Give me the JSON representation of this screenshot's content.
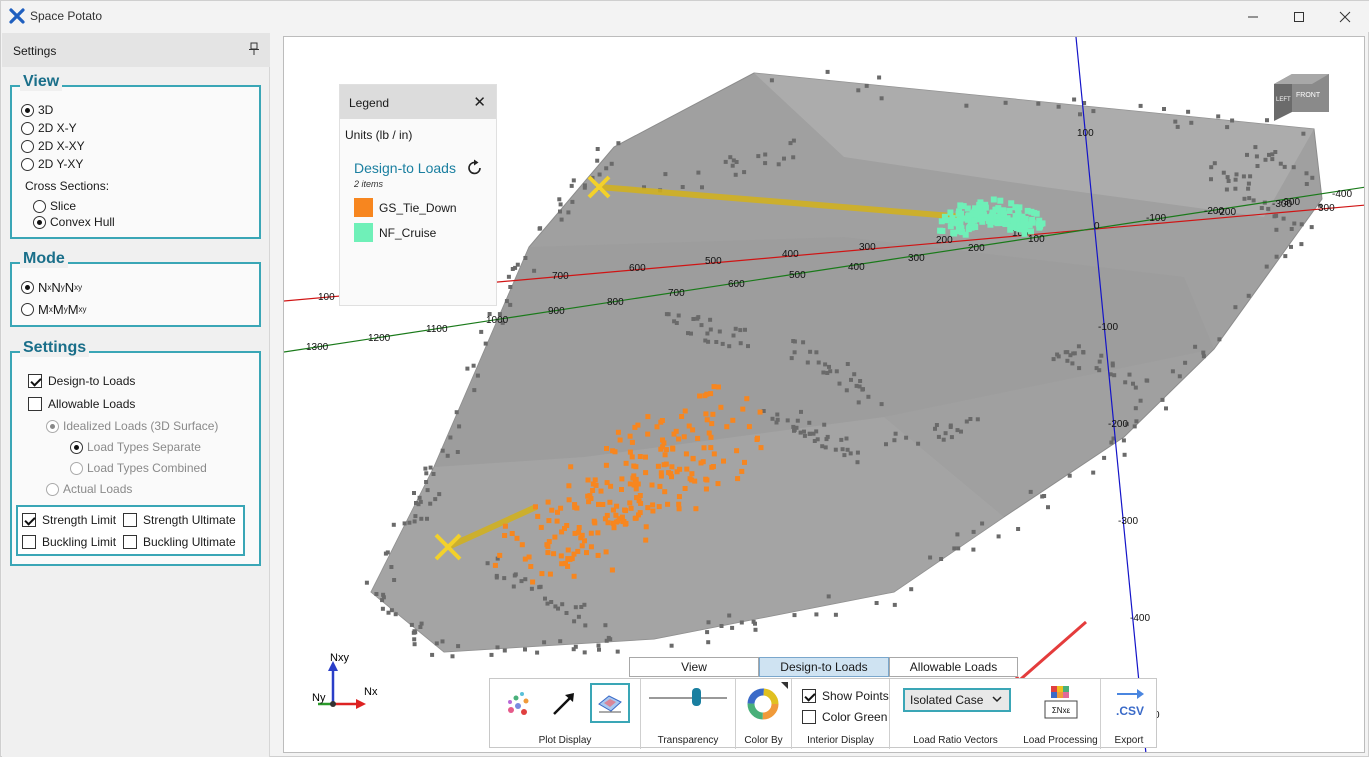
{
  "app": {
    "title": "Space Potato",
    "colors": {
      "accent": "#3aa6b6",
      "heading": "#1a6f8a",
      "orange": "#f7861f",
      "green": "#6ff0b8",
      "gold": "#e3c020"
    }
  },
  "sidebar": {
    "title": "Settings",
    "view": {
      "heading": "View",
      "options": [
        "3D",
        "2D X-Y",
        "2D X-XY",
        "2D Y-XY"
      ],
      "selected": "3D",
      "cross_sections_label": "Cross Sections:",
      "cross_options": [
        "Slice",
        "Convex Hull"
      ],
      "cross_selected": "Convex Hull"
    },
    "mode": {
      "heading": "Mode",
      "opt1": {
        "a": "N",
        "as": "x",
        "b": " N",
        "bs": "y",
        "c": " N",
        "cs": "xy"
      },
      "opt2": {
        "a": "M",
        "as": "x",
        "b": " M",
        "bs": "y",
        "c": " M",
        "cs": "xy"
      },
      "selected": "N"
    },
    "settings": {
      "heading": "Settings",
      "design_to_loads": "Design-to Loads",
      "allowable_loads": "Allowable Loads",
      "idealized": "Idealized Loads (3D Surface)",
      "separate": "Load Types Separate",
      "combined": "Load Types Combined",
      "actual": "Actual Loads",
      "strength_limit": "Strength Limit",
      "strength_ultimate": "Strength Ultimate",
      "buckling_limit": "Buckling Limit",
      "buckling_ultimate": "Buckling Ultimate"
    }
  },
  "legend": {
    "title": "Legend",
    "units": "Units (lb / in)",
    "group_title": "Design-to Loads",
    "count": "2 items",
    "items": [
      {
        "label": "GS_Tie_Down",
        "color": "#f7861f"
      },
      {
        "label": "NF_Cruise",
        "color": "#6ff0b8"
      }
    ]
  },
  "axes": {
    "red_ticks": [
      "100",
      "800",
      "700",
      "600",
      "500",
      "400",
      "300",
      "200",
      "100",
      "0",
      "-100",
      "-200",
      "-300",
      "300"
    ],
    "green_ticks": [
      "1300",
      "1200",
      "1100",
      "1000",
      "900",
      "800",
      "700",
      "600",
      "500",
      "400",
      "300",
      "200",
      "100",
      "-200",
      "-300",
      "-400"
    ],
    "blue_ticks": [
      "100",
      "-100",
      "-200",
      "-300",
      "-400",
      "0"
    ],
    "triad": {
      "nxy": "Nxy",
      "ny": "Ny",
      "nx": "Nx"
    },
    "cube": {
      "left": "LEFT",
      "front": "FRONT"
    }
  },
  "tabs": [
    "View",
    "Design-to Loads",
    "Allowable Loads"
  ],
  "active_tab": "Design-to Loads",
  "toolbar": {
    "plot_display": "Plot Display",
    "transparency": "Transparency",
    "color_by": "Color By",
    "interior_display": "Interior Display",
    "show_points": "Show Points",
    "color_green": "Color Green",
    "load_ratio_vectors": "Load Ratio Vectors",
    "isolated_case": "Isolated Case",
    "load_processing": "Load Processing",
    "load_processing_icon": "ΣNxε",
    "export": "Export",
    "export_icon": ".CSV",
    "transparency_value": 0.6
  }
}
